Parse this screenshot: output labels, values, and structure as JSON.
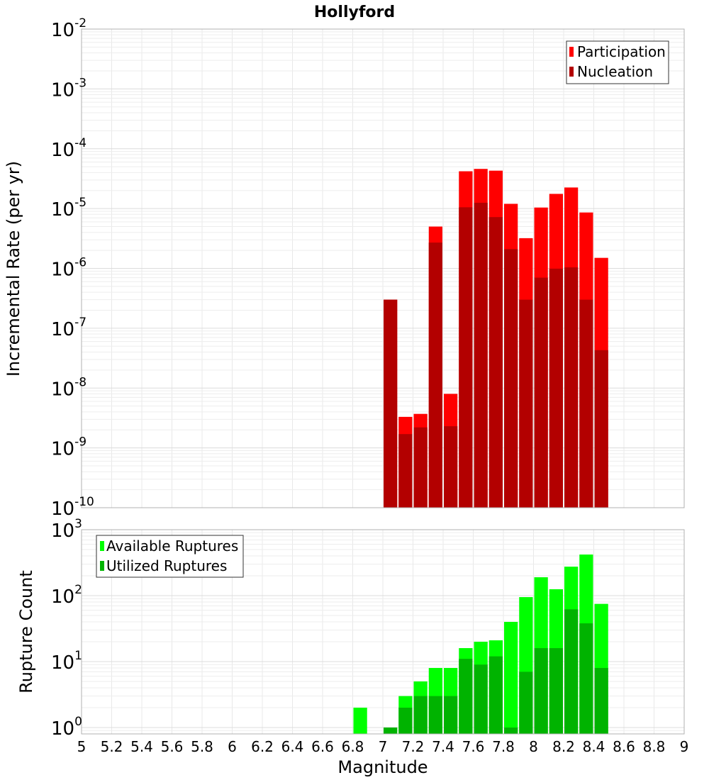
{
  "chart_data": [
    {
      "type": "bar",
      "title": "Hollyford",
      "xlabel": "",
      "ylabel": "Incremental Rate (per yr)",
      "yscale": "log",
      "ylim": [
        1e-10,
        0.01
      ],
      "xlim": [
        5,
        9
      ],
      "bar_width": 0.1,
      "legend_position": "top-right",
      "x": [
        7.05,
        7.15,
        7.25,
        7.35,
        7.45,
        7.55,
        7.65,
        7.75,
        7.85,
        7.95,
        8.05,
        8.15,
        8.25,
        8.35,
        8.45
      ],
      "series": [
        {
          "name": "Participation",
          "color": "#ff0000",
          "values": [
            3e-07,
            3.3e-09,
            3.7e-09,
            5e-06,
            8e-09,
            4.2e-05,
            4.6e-05,
            4.3e-05,
            1.2e-05,
            3.2e-06,
            1.04e-05,
            1.76e-05,
            2.25e-05,
            8.6e-06,
            1.5e-06
          ]
        },
        {
          "name": "Nucleation",
          "color": "#b30000",
          "values": [
            3e-07,
            1.7e-09,
            2.2e-09,
            2.7e-06,
            2.3e-09,
            1.05e-05,
            1.25e-05,
            7.2e-06,
            2.1e-06,
            3e-07,
            7e-07,
            9.9e-07,
            1.04e-06,
            3e-07,
            4.3e-08
          ]
        }
      ]
    },
    {
      "type": "bar",
      "title": "",
      "xlabel": "Magnitude",
      "ylabel": "Rupture Count",
      "yscale": "log",
      "ylim": [
        0.8,
        1000
      ],
      "xlim": [
        5,
        9
      ],
      "bar_width": 0.1,
      "legend_position": "top-left",
      "x": [
        6.85,
        6.95,
        7.05,
        7.15,
        7.25,
        7.35,
        7.45,
        7.55,
        7.65,
        7.75,
        7.85,
        7.95,
        8.05,
        8.15,
        8.25,
        8.35,
        8.45
      ],
      "series": [
        {
          "name": "Available Ruptures",
          "color": "#00ff00",
          "values": [
            2,
            0,
            1,
            3,
            5,
            8,
            8,
            16,
            20,
            21,
            40,
            95,
            190,
            125,
            275,
            420,
            75
          ]
        },
        {
          "name": "Utilized Ruptures",
          "color": "#00b300",
          "values": [
            0,
            0,
            1,
            2,
            3,
            3,
            3,
            11,
            9,
            12,
            1,
            7,
            16,
            16,
            62,
            38,
            8
          ]
        }
      ]
    }
  ],
  "x_ticks": [
    "5",
    "5.2",
    "5.4",
    "5.6",
    "5.8",
    "6",
    "6.2",
    "6.4",
    "6.6",
    "6.8",
    "7",
    "7.2",
    "7.4",
    "7.6",
    "7.8",
    "8",
    "8.2",
    "8.4",
    "8.6",
    "8.8",
    "9"
  ],
  "top_y_ticks": [
    {
      "base": "10",
      "exp": "-2"
    },
    {
      "base": "10",
      "exp": "-3"
    },
    {
      "base": "10",
      "exp": "-4"
    },
    {
      "base": "10",
      "exp": "-5"
    },
    {
      "base": "10",
      "exp": "-6"
    },
    {
      "base": "10",
      "exp": "-7"
    },
    {
      "base": "10",
      "exp": "-8"
    },
    {
      "base": "10",
      "exp": "-9"
    },
    {
      "base": "10",
      "exp": "-10"
    }
  ],
  "bottom_y_ticks": [
    {
      "base": "10",
      "exp": "3"
    },
    {
      "base": "10",
      "exp": "2"
    },
    {
      "base": "10",
      "exp": "1"
    },
    {
      "base": "10",
      "exp": "0"
    }
  ]
}
